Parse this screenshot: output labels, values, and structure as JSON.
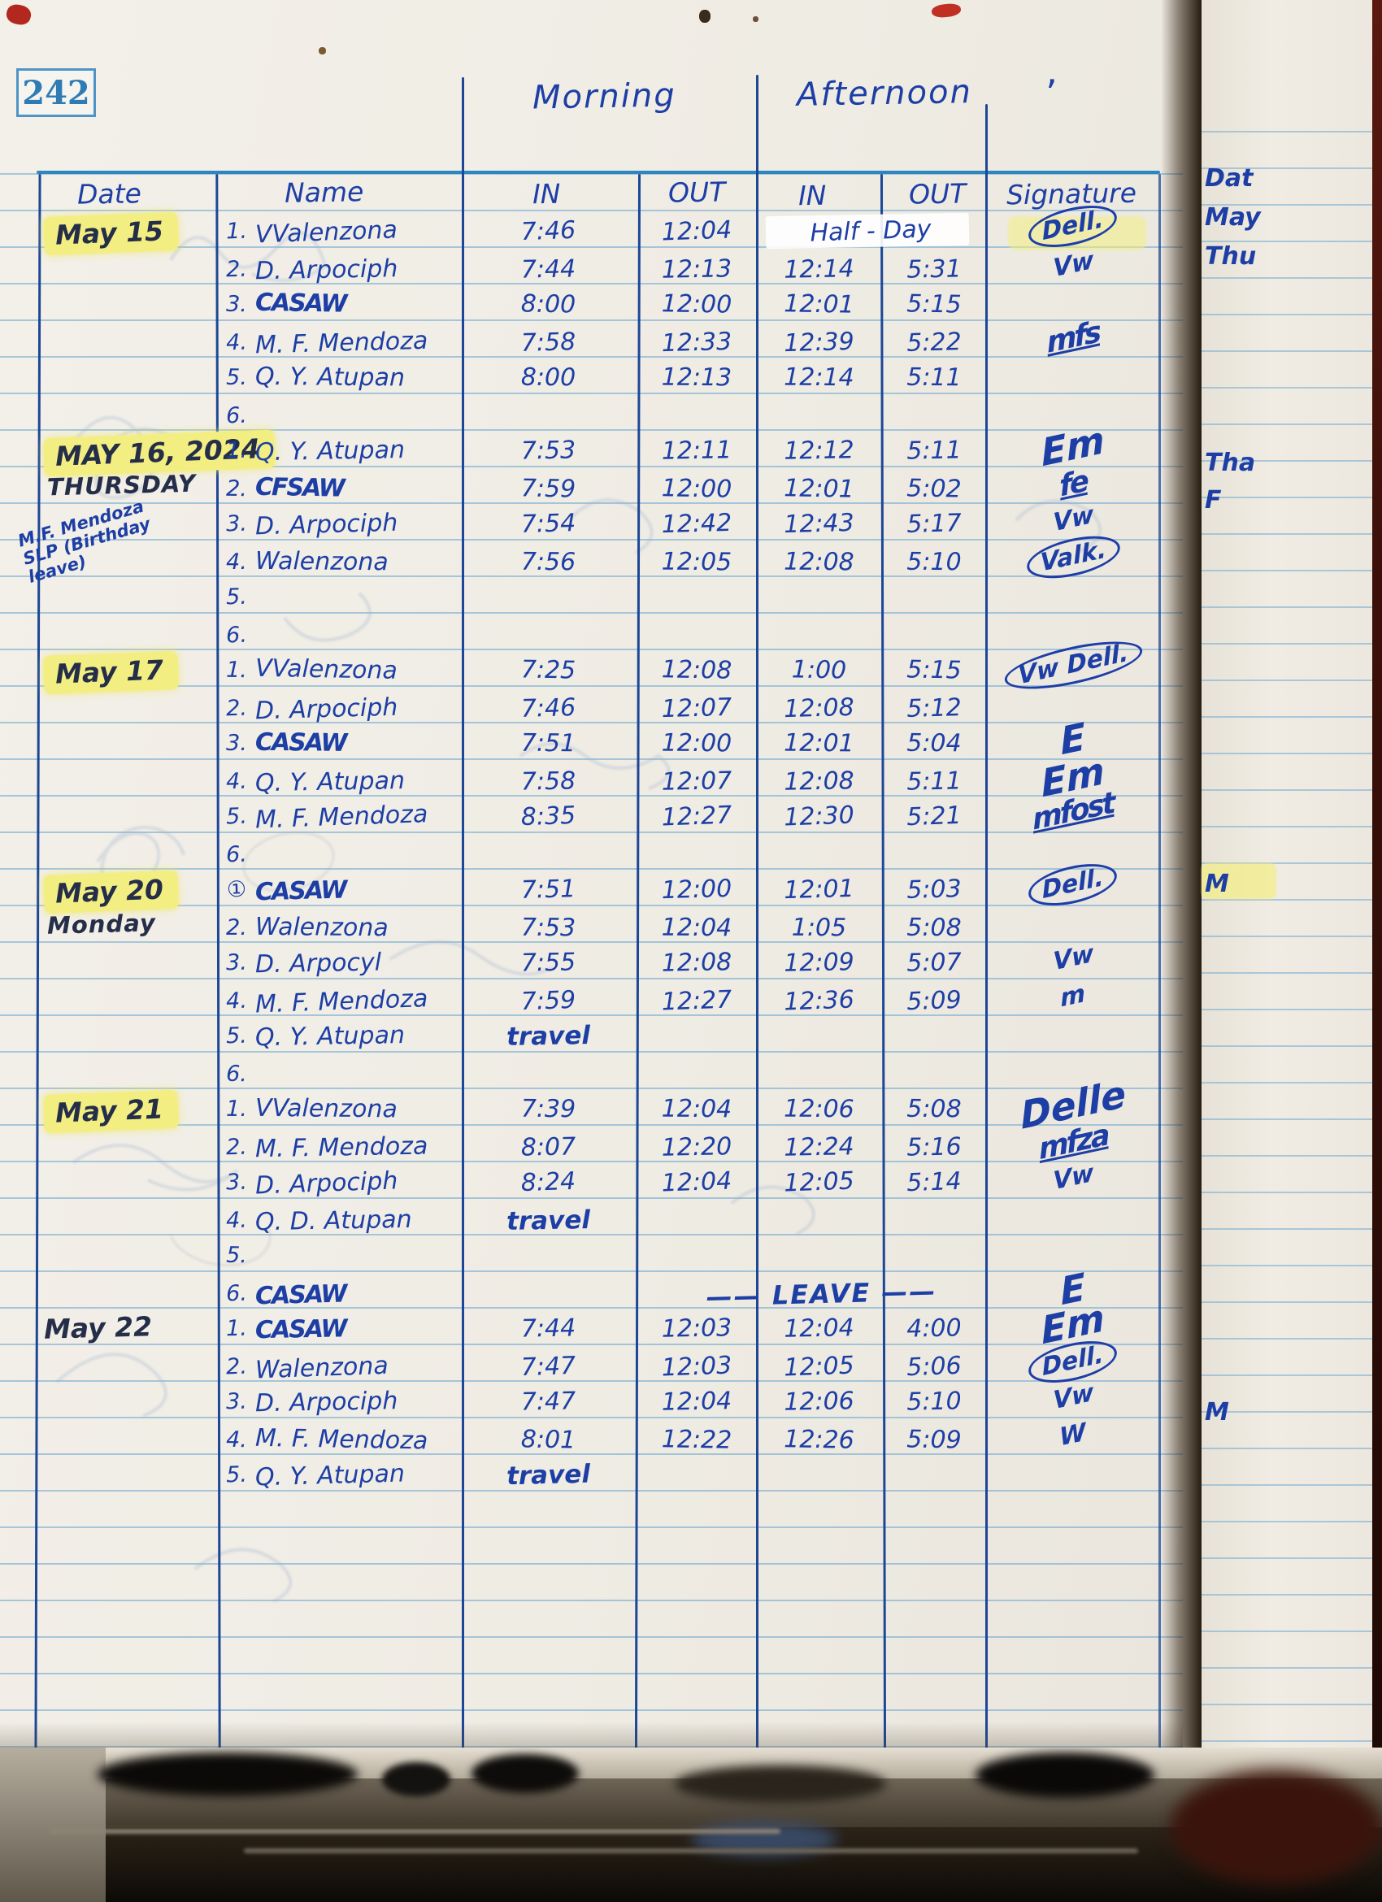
{
  "page_number": "242",
  "header": {
    "morning": "Morning",
    "afternoon": "Afternoon",
    "apostrophe": "’",
    "col_date": "Date",
    "col_name": "Name",
    "col_in_morning": "IN",
    "col_out_morning": "OUT",
    "col_in_afternoon": "IN",
    "col_out_afternoon": "OUT",
    "col_signature": "Signature"
  },
  "colors": {
    "ink": "#1d3ea5",
    "highlight": "#f3ee82",
    "table_line": "#1d4796"
  },
  "blocks": [
    {
      "date_lines": [
        {
          "text": "May 15",
          "highlight": true
        }
      ],
      "note_lines": [],
      "rows": [
        {
          "num": "1.",
          "name": "VValenzona",
          "m_in": "7:46",
          "m_out": "12:04",
          "a_span": "Half - Day",
          "sig": "Dell.",
          "sig_style": "circled"
        },
        {
          "num": "2.",
          "name": "D. Arpociph",
          "m_in": "7:44",
          "m_out": "12:13",
          "a_in": "12:14",
          "a_out": "5:31",
          "sig": "Vw"
        },
        {
          "num": "3.",
          "name": "CASAW",
          "name_style": "scribble",
          "m_in": "8:00",
          "m_out": "12:00",
          "a_in": "12:01",
          "a_out": "5:15"
        },
        {
          "num": "4.",
          "name": "M. F. Mendoza",
          "m_in": "7:58",
          "m_out": "12:33",
          "a_in": "12:39",
          "a_out": "5:22",
          "sig": "mfs",
          "sig_style": "scrawl"
        },
        {
          "num": "5.",
          "name": "Q. Y. Atupan",
          "m_in": "8:00",
          "m_out": "12:13",
          "a_in": "12:14",
          "a_out": "5:11"
        },
        {
          "num": "6."
        }
      ]
    },
    {
      "date_lines": [
        {
          "text": "MAY 16, 2024",
          "highlight": true
        },
        {
          "text": "THURSDAY"
        }
      ],
      "note_lines": [
        "M.F. Mendoza",
        "SLP (Birthday",
        "leave)"
      ],
      "rows": [
        {
          "num": "1.",
          "name": "Q. Y. Atupan",
          "m_in": "7:53",
          "m_out": "12:11",
          "a_in": "12:12",
          "a_out": "5:11",
          "sig": "Em",
          "sig_style": "big"
        },
        {
          "num": "2.",
          "name": "CFSAW",
          "name_style": "scribble",
          "m_in": "7:59",
          "m_out": "12:00",
          "a_in": "12:01",
          "a_out": "5:02",
          "sig": "fe",
          "sig_style": "scrawl"
        },
        {
          "num": "3.",
          "name": "D. Arpociph",
          "m_in": "7:54",
          "m_out": "12:42",
          "a_in": "12:43",
          "a_out": "5:17",
          "sig": "Vw"
        },
        {
          "num": "4.",
          "name": "Walenzona",
          "m_in": "7:56",
          "m_out": "12:05",
          "a_in": "12:08",
          "a_out": "5:10",
          "sig": "Valk.",
          "sig_style": "circled"
        },
        {
          "num": "5."
        },
        {
          "num": "6."
        }
      ]
    },
    {
      "date_lines": [
        {
          "text": "May 17",
          "highlight": true
        }
      ],
      "note_lines": [],
      "rows": [
        {
          "num": "1.",
          "name": "VValenzona",
          "m_in": "7:25",
          "m_out": "12:08",
          "a_in": "1:00",
          "a_out": "5:15",
          "sig": "Vw Dell.",
          "sig_style": "circled"
        },
        {
          "num": "2.",
          "name": "D. Arpociph",
          "m_in": "7:46",
          "m_out": "12:07",
          "a_in": "12:08",
          "a_out": "5:12"
        },
        {
          "num": "3.",
          "name": "CASAW",
          "name_style": "scribble",
          "m_in": "7:51",
          "m_out": "12:00",
          "a_in": "12:01",
          "a_out": "5:04",
          "sig": "E",
          "sig_style": "big"
        },
        {
          "num": "4.",
          "name": "Q. Y. Atupan",
          "m_in": "7:58",
          "m_out": "12:07",
          "a_in": "12:08",
          "a_out": "5:11",
          "sig": "Em",
          "sig_style": "big"
        },
        {
          "num": "5.",
          "name": "M. F. Mendoza",
          "m_in": "8:35",
          "m_out": "12:27",
          "a_in": "12:30",
          "a_out": "5:21",
          "sig": "mfost",
          "sig_style": "scrawl"
        },
        {
          "num": "6."
        }
      ]
    },
    {
      "date_lines": [
        {
          "text": "May 20",
          "highlight": true
        },
        {
          "text": "Monday"
        }
      ],
      "note_lines": [],
      "rows": [
        {
          "num": "①",
          "name": "CASAW",
          "name_style": "scribble",
          "m_in": "7:51",
          "m_out": "12:00",
          "a_in": "12:01",
          "a_out": "5:03",
          "sig": "Dell.",
          "sig_style": "circled"
        },
        {
          "num": "2.",
          "name": "Walenzona",
          "m_in": "7:53",
          "m_out": "12:04",
          "a_in": "1:05",
          "a_out": "5:08"
        },
        {
          "num": "3.",
          "name": "D. Arpocyl",
          "m_in": "7:55",
          "m_out": "12:08",
          "a_in": "12:09",
          "a_out": "5:07",
          "sig": "Vw"
        },
        {
          "num": "4.",
          "name": "M. F. Mendoza",
          "m_in": "7:59",
          "m_out": "12:27",
          "a_in": "12:36",
          "a_out": "5:09",
          "sig": "m"
        },
        {
          "num": "5.",
          "name": "Q. Y. Atupan",
          "m_span": "travel"
        },
        {
          "num": "6."
        }
      ]
    },
    {
      "date_lines": [
        {
          "text": "May 21",
          "highlight": true
        }
      ],
      "note_lines": [],
      "rows": [
        {
          "num": "1.",
          "name": "VValenzona",
          "m_in": "7:39",
          "m_out": "12:04",
          "a_in": "12:06",
          "a_out": "5:08",
          "sig": "Delle",
          "sig_style": "big"
        },
        {
          "num": "2.",
          "name": "M. F. Mendoza",
          "m_in": "8:07",
          "m_out": "12:20",
          "a_in": "12:24",
          "a_out": "5:16",
          "sig": "mfza",
          "sig_style": "scrawl"
        },
        {
          "num": "3.",
          "name": "D. Arpociph",
          "m_in": "8:24",
          "m_out": "12:04",
          "a_in": "12:05",
          "a_out": "5:14",
          "sig": "Vw"
        },
        {
          "num": "4.",
          "name": "Q. D. Atupan",
          "m_span": "travel"
        },
        {
          "num": "5."
        },
        {
          "num": "6.",
          "name": "CASAW",
          "name_style": "scribble",
          "leave_span": "—— LEAVE ——",
          "sig": "E",
          "sig_style": "big"
        }
      ]
    },
    {
      "date_lines": [
        {
          "text": "May 22"
        }
      ],
      "note_lines": [],
      "rows": [
        {
          "num": "1.",
          "name": "CASAW",
          "name_style": "scribble",
          "m_in": "7:44",
          "m_out": "12:03",
          "a_in": "12:04",
          "a_out": "4:00",
          "sig": "Em",
          "sig_style": "big"
        },
        {
          "num": "2.",
          "name": "Walenzona",
          "m_in": "7:47",
          "m_out": "12:03",
          "a_in": "12:05",
          "a_out": "5:06",
          "sig": "Dell.",
          "sig_style": "circled"
        },
        {
          "num": "3.",
          "name": "D. Arpociph",
          "m_in": "7:47",
          "m_out": "12:04",
          "a_in": "12:06",
          "a_out": "5:10",
          "sig": "Vw"
        },
        {
          "num": "4.",
          "name": "M. F. Mendoza",
          "m_in": "8:01",
          "m_out": "12:22",
          "a_in": "12:26",
          "a_out": "5:09",
          "sig": "W"
        },
        {
          "num": "5.",
          "name": "Q. Y. Atupan",
          "m_span": "travel"
        }
      ]
    }
  ],
  "right_page": {
    "texts": [
      "Dat",
      "May",
      "Thu",
      "Tha",
      "F",
      "M",
      "M"
    ]
  }
}
